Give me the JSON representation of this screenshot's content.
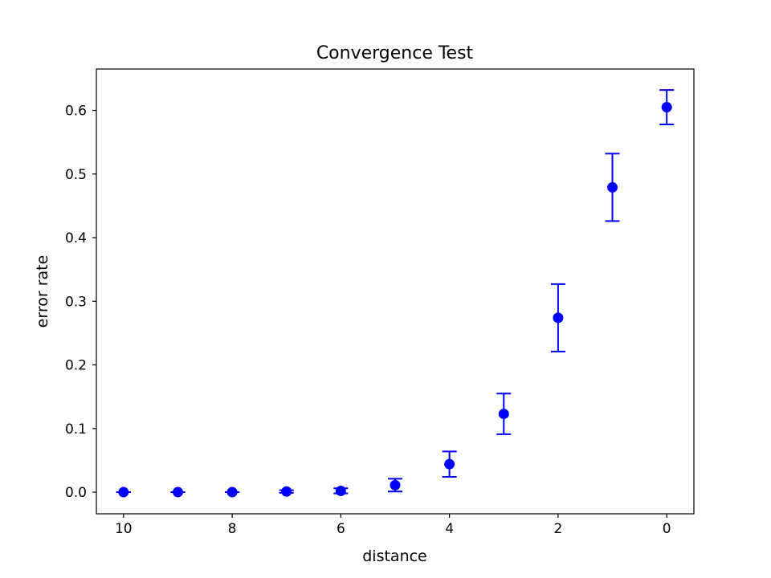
{
  "chart_data": {
    "type": "scatter",
    "title": "Convergence Test",
    "xlabel": "distance",
    "ylabel": "error rate",
    "xlim": [
      10.5,
      -0.5
    ],
    "ylim": [
      -0.034,
      0.665
    ],
    "x_reversed": true,
    "grid": false,
    "legend": "none",
    "x_ticks": [
      10,
      8,
      6,
      4,
      2,
      0
    ],
    "x_tick_labels": [
      "10",
      "8",
      "6",
      "4",
      "2",
      "0"
    ],
    "y_ticks": [
      0.0,
      0.1,
      0.2,
      0.3,
      0.4,
      0.5,
      0.6
    ],
    "y_tick_labels": [
      "0.0",
      "0.1",
      "0.2",
      "0.3",
      "0.4",
      "0.5",
      "0.6"
    ],
    "series": [
      {
        "color": "#0000ff",
        "marker": "circle",
        "points": [
          {
            "x": 10,
            "y": 0.0,
            "err_low": 0.0,
            "err_high": 0.0
          },
          {
            "x": 9,
            "y": 0.0,
            "err_low": 0.0,
            "err_high": 0.0
          },
          {
            "x": 8,
            "y": 0.0,
            "err_low": 0.0,
            "err_high": 0.0
          },
          {
            "x": 7,
            "y": 0.001,
            "err_low": 0.002,
            "err_high": 0.002
          },
          {
            "x": 6,
            "y": 0.002,
            "err_low": 0.004,
            "err_high": 0.004
          },
          {
            "x": 5,
            "y": 0.011,
            "err_low": 0.01,
            "err_high": 0.01
          },
          {
            "x": 4,
            "y": 0.044,
            "err_low": 0.02,
            "err_high": 0.02
          },
          {
            "x": 3,
            "y": 0.123,
            "err_low": 0.032,
            "err_high": 0.032
          },
          {
            "x": 2,
            "y": 0.274,
            "err_low": 0.053,
            "err_high": 0.053
          },
          {
            "x": 1,
            "y": 0.479,
            "err_low": 0.053,
            "err_high": 0.053
          },
          {
            "x": 0,
            "y": 0.605,
            "err_low": 0.027,
            "err_high": 0.027
          }
        ]
      }
    ]
  }
}
